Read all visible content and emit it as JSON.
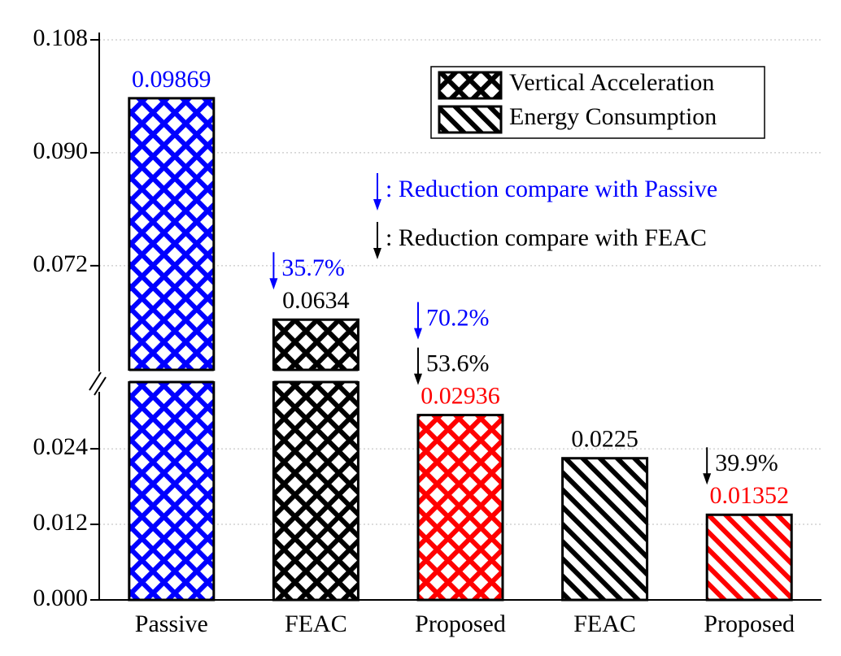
{
  "chart_data": {
    "type": "bar",
    "categories": [
      "Passive",
      "FEAC",
      "Proposed",
      "FEAC",
      "Proposed"
    ],
    "series": [
      {
        "name": "Vertical Acceleration",
        "pattern": "crosshatch",
        "values": [
          0.09869,
          0.0634,
          0.02936,
          null,
          null
        ]
      },
      {
        "name": "Energy Consumption",
        "pattern": "diagonal",
        "values": [
          null,
          null,
          null,
          0.0225,
          0.01352
        ]
      }
    ],
    "bar_colors": [
      "#0000ff",
      "#000000",
      "#ff0000",
      "#000000",
      "#ff0000"
    ],
    "ylim": [
      0,
      0.108
    ],
    "ybreak": [
      0.0346,
      0.0554
    ],
    "yticks": [
      {
        "value": 0,
        "label": "0.000"
      },
      0.012,
      0.024,
      0.072,
      {
        "value": 0.09,
        "label": "0.090"
      },
      0.108
    ],
    "grid": true,
    "legend": "upper right",
    "notes": [
      {
        "text": ": Reduction compare with Passive",
        "color": "#0000ff"
      },
      {
        "text": ": Reduction compare with FEAC",
        "color": "#000000"
      }
    ],
    "annotations": [
      {
        "text": "35.7%",
        "color": "#0000ff",
        "category": 1
      },
      {
        "text": "53.6%",
        "color": "#000000",
        "category": 2
      },
      {
        "text": "70.2%",
        "color": "#0000ff",
        "category": 2
      },
      {
        "text": "39.9%",
        "color": "#000000",
        "category": 4
      }
    ]
  }
}
